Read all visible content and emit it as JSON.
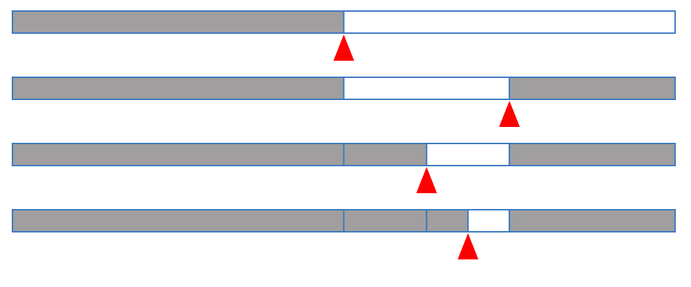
{
  "colors": {
    "shaded": "#a09e9e",
    "open": "#ffffff",
    "border": "#3a78c2",
    "marker": "#ff0000"
  },
  "rows": [
    {
      "segments": [
        {
          "from": 0,
          "to": 0.5,
          "state": "shaded"
        },
        {
          "from": 0.5,
          "to": 1,
          "state": "open"
        }
      ],
      "marker_at": 0.5
    },
    {
      "segments": [
        {
          "from": 0,
          "to": 0.5,
          "state": "shaded"
        },
        {
          "from": 0.5,
          "to": 0.75,
          "state": "open"
        },
        {
          "from": 0.75,
          "to": 1,
          "state": "shaded"
        }
      ],
      "marker_at": 0.75
    },
    {
      "segments": [
        {
          "from": 0,
          "to": 0.5,
          "state": "shaded"
        },
        {
          "from": 0.5,
          "to": 0.625,
          "state": "shaded"
        },
        {
          "from": 0.625,
          "to": 0.75,
          "state": "open"
        },
        {
          "from": 0.75,
          "to": 1,
          "state": "shaded"
        }
      ],
      "marker_at": 0.625
    },
    {
      "segments": [
        {
          "from": 0,
          "to": 0.5,
          "state": "shaded"
        },
        {
          "from": 0.5,
          "to": 0.625,
          "state": "shaded"
        },
        {
          "from": 0.625,
          "to": 0.6875,
          "state": "shaded"
        },
        {
          "from": 0.6875,
          "to": 0.75,
          "state": "open"
        },
        {
          "from": 0.75,
          "to": 1,
          "state": "shaded"
        }
      ],
      "marker_at": 0.6875
    }
  ]
}
